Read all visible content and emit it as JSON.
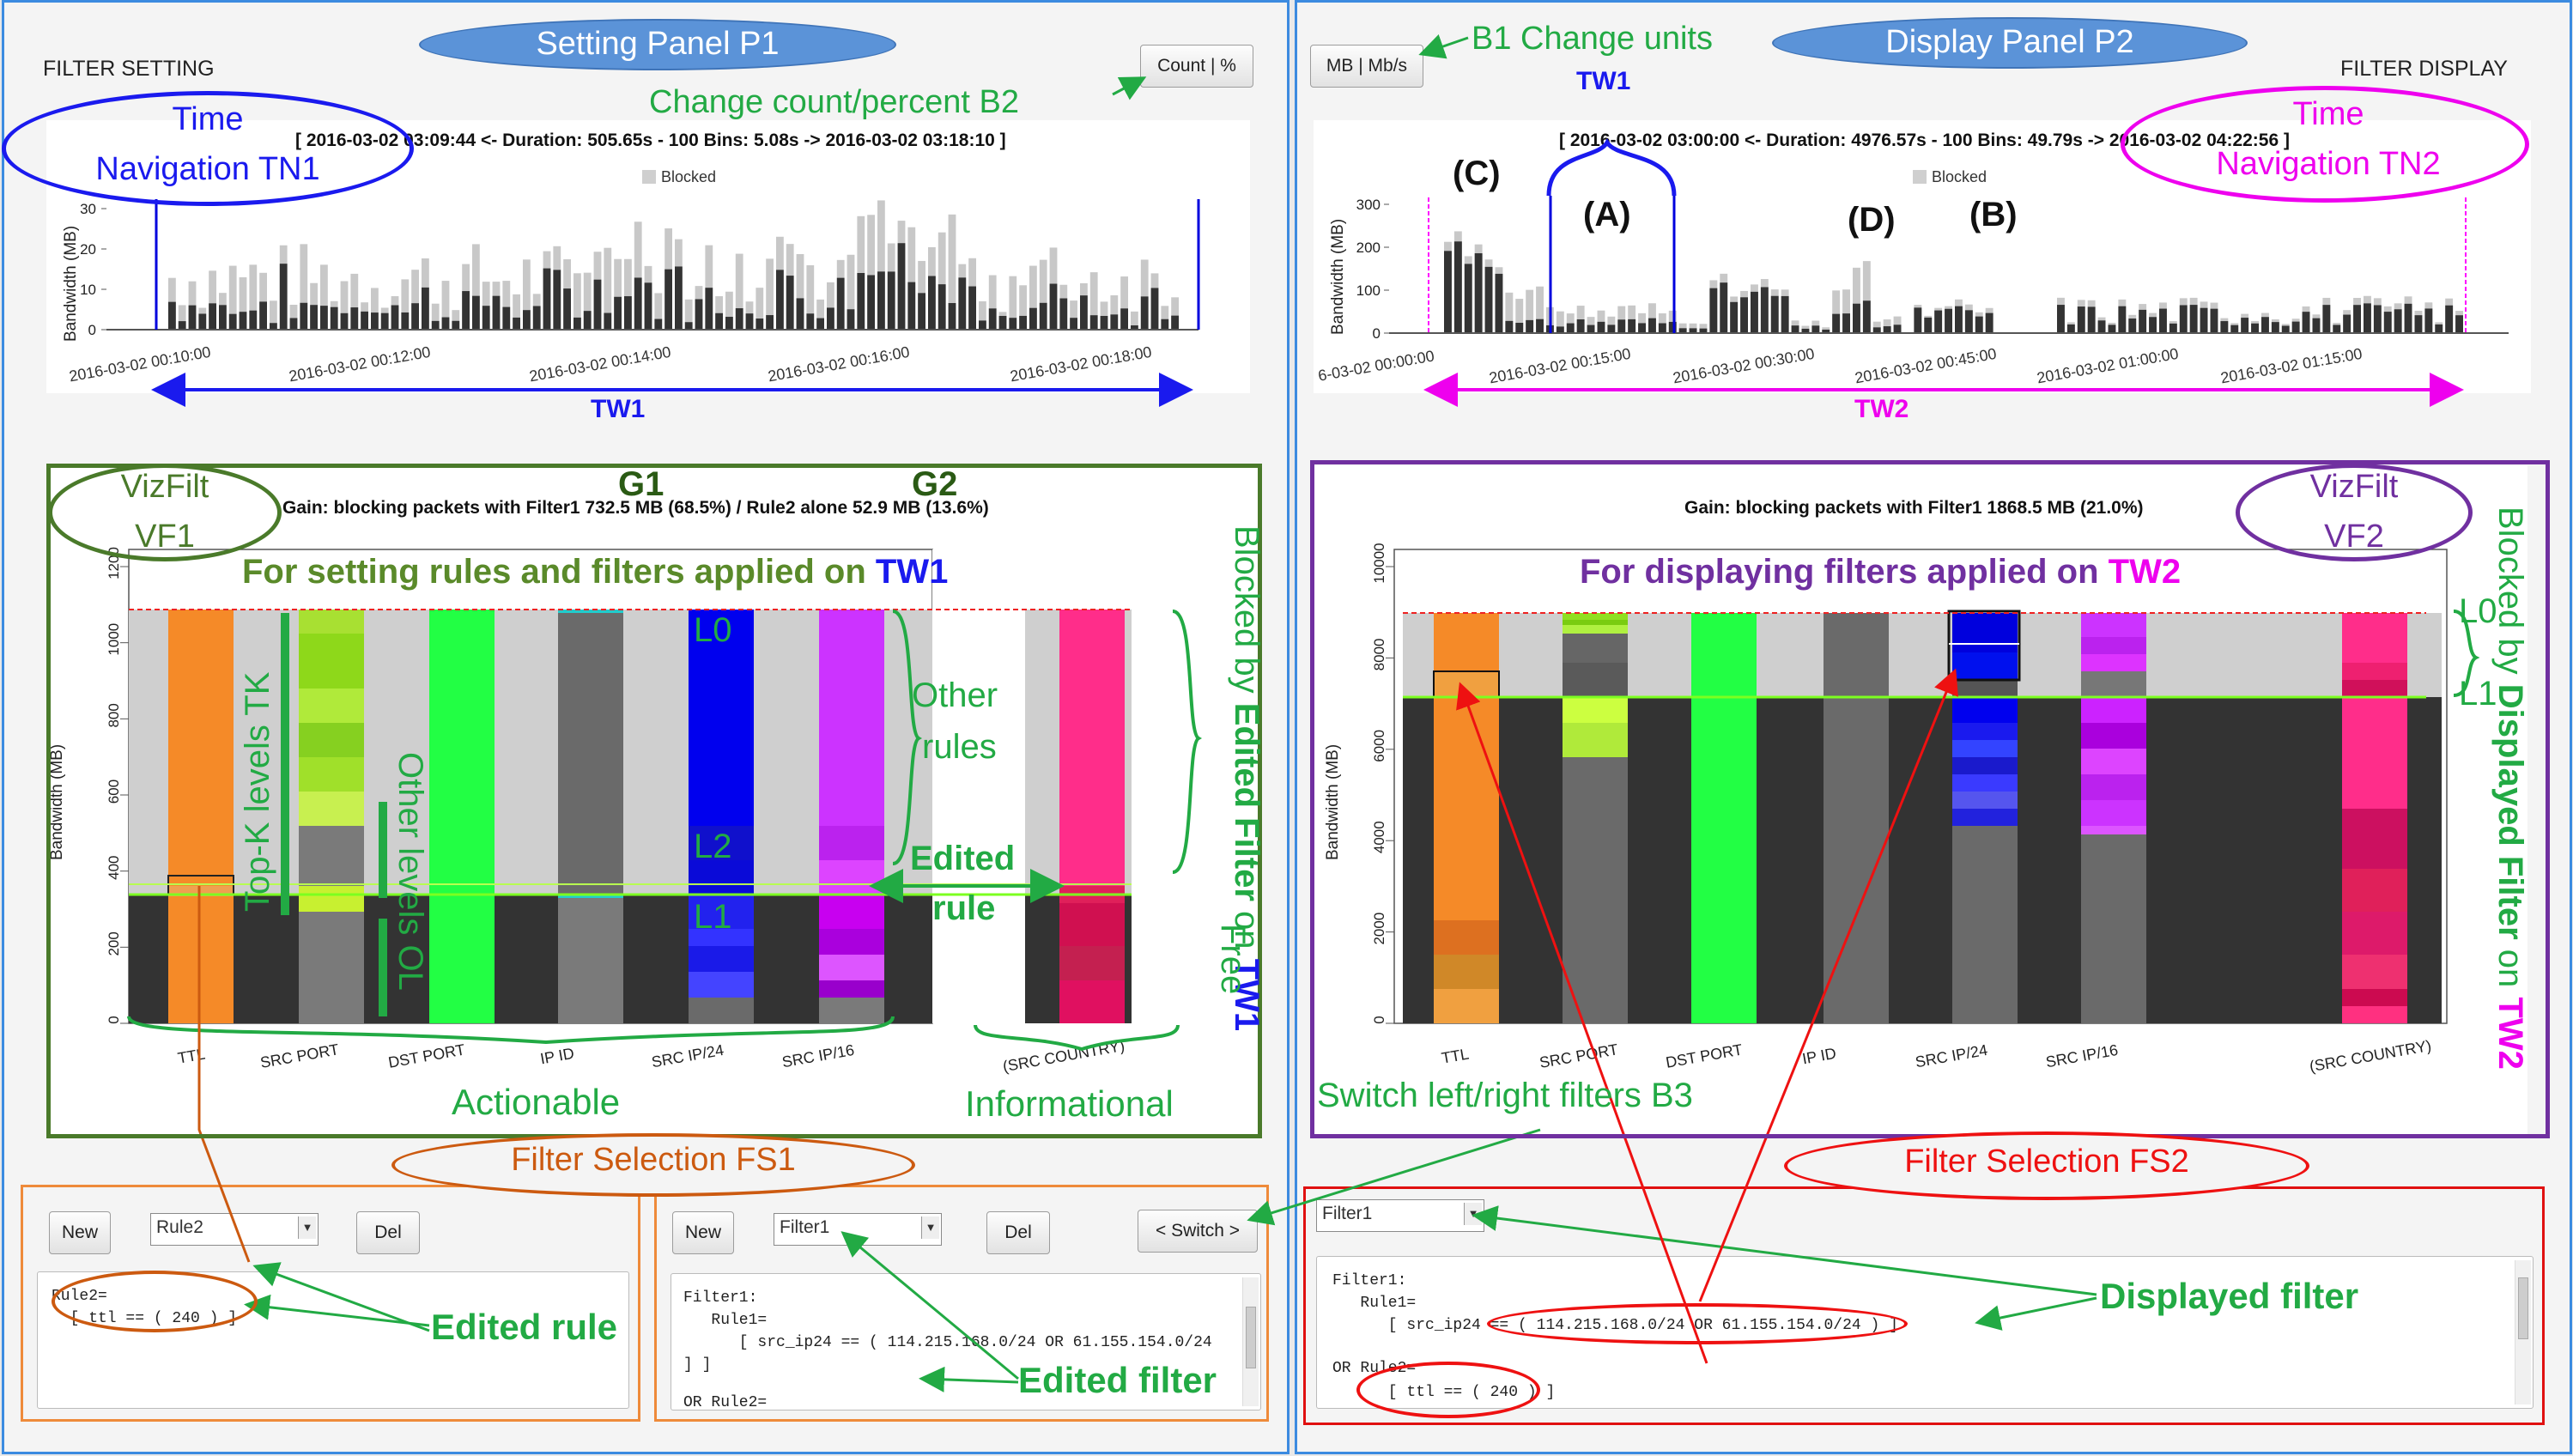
{
  "left_panel": {
    "title": "FILTER SETTING",
    "count_button": "Count | %",
    "nav_header": "[ 2016-03-02 03:09:44 <- Duration: 505.65s - 100 Bins: 5.08s -> 2016-03-02 03:18:10 ]",
    "legend": "Blocked",
    "ylabel": "Bandwidth (MB)",
    "yticks": [
      "0",
      "10",
      "20",
      "30"
    ],
    "xticks": [
      "2016-03-02 00:10:00",
      "2016-03-02 00:12:00",
      "2016-03-02 00:14:00",
      "2016-03-02 00:16:00",
      "2016-03-02 00:18:00"
    ],
    "gain": "Gain: blocking packets with Filter1 732.5 MB (68.5%) / Rule2 alone 52.9 MB (13.6%)",
    "viz_ylabel": "Bandwidth (MB)",
    "viz_yticks": [
      "0",
      "200",
      "400",
      "600",
      "800",
      "1000",
      "1200"
    ],
    "viz_xlabels": [
      "TTL",
      "SRC PORT",
      "DST PORT",
      "IP ID",
      "SRC IP/24",
      "SRC IP/16",
      "(SRC COUNTRY)"
    ]
  },
  "right_panel": {
    "title": "FILTER DISPLAY",
    "units_button": "MB | Mb/s",
    "nav_header": "[ 2016-03-02 03:00:00 <- Duration: 4976.57s - 100 Bins: 49.79s -> 2016-03-02 04:22:56 ]",
    "legend": "Blocked",
    "ylabel": "Bandwidth (MB)",
    "yticks": [
      "0",
      "100",
      "200",
      "300"
    ],
    "xticks": [
      "6-03-02 00:00:00",
      "2016-03-02 00:15:00",
      "2016-03-02 00:30:00",
      "2016-03-02 00:45:00",
      "2016-03-02 01:00:00",
      "2016-03-02 01:15:00"
    ],
    "gain": "Gain: blocking packets with Filter1 1868.5 MB (21.0%)",
    "viz_ylabel": "Bandwidth (MB)",
    "viz_yticks": [
      "0",
      "2000",
      "4000",
      "6000",
      "8000",
      "10000"
    ],
    "viz_xlabels": [
      "TTL",
      "SRC PORT",
      "DST PORT",
      "IP ID",
      "SRC IP/24",
      "SRC IP/16",
      "(SRC COUNTRY)"
    ]
  },
  "fs1": {
    "new": "New",
    "rule_select": "Rule2",
    "del": "Del",
    "text_lines": [
      "Rule2=",
      "  [ ttl == ( 240 ) ]"
    ]
  },
  "fs_mid": {
    "new": "New",
    "filter_select": "Filter1",
    "del": "Del",
    "switch": "< Switch >",
    "text_lines": [
      "Filter1:",
      "   Rule1=",
      "      [ src_ip24 == ( 114.215.168.0/24 OR 61.155.154.0/24",
      "] ]",
      "",
      "OR Rule2="
    ]
  },
  "fs2": {
    "filter_select": "Filter1",
    "text_lines": [
      "Filter1:",
      "   Rule1=",
      "      [ src_ip24 == ( 114.215.168.0/24 OR 61.155.154.0/24 ) ]",
      "",
      "OR Rule2=",
      "      [ ttl == ( 240 ) ]"
    ]
  },
  "annotations": {
    "setting_panel": "Setting Panel P1",
    "display_panel": "Display Panel P2",
    "b1": "B1 Change units",
    "b2": "Change count/percent B2",
    "tn1_line1": "Time",
    "tn1_line2": "Navigation TN1",
    "tn2_line1": "Time",
    "tn2_line2": "Navigation TN2",
    "tw1": "TW1",
    "tw2": "TW2",
    "tw1_top": "TW1",
    "label_a": "(A)",
    "label_b": "(B)",
    "label_c": "(C)",
    "label_d": "(D)",
    "vf1_line1": "VizFilt",
    "vf1_line2": "VF1",
    "vf2_line1": "VizFilt",
    "vf2_line2": "VF2",
    "g1": "G1",
    "g2": "G2",
    "setting_rules": "For setting rules and filters applied on",
    "setting_rules_tw": "TW1",
    "displaying": "For displaying filters applied on",
    "displaying_tw": "TW2",
    "blocked_edited_1": "Blocked by",
    "blocked_edited_2": "Edited Filter",
    "blocked_edited_3": "on",
    "blocked_edited_4": "TW1",
    "blocked_displayed_1": "Blocked by",
    "blocked_displayed_2": "Displayed Filter",
    "blocked_displayed_3": "on",
    "blocked_displayed_4": "TW2",
    "l0": "L0",
    "l1": "L1",
    "l2": "L2",
    "r_l0": "L0",
    "r_l1": "L1",
    "topk": "Top-K levels TK",
    "other_levels": "Other levels OL",
    "other_rules_1": "Other",
    "other_rules_2": "rules",
    "edited_rule_1": "Edited",
    "edited_rule_2": "rule",
    "free": "Free",
    "actionable": "Actionable",
    "informational": "Informational",
    "switch_b3": "Switch left/right filters B3",
    "fs1_label": "Filter Selection FS1",
    "fs2_label": "Filter Selection FS2",
    "edited_rule_label": "Edited rule",
    "edited_filter_label": "Edited filter",
    "displayed_filter_label": "Displayed filter"
  }
}
